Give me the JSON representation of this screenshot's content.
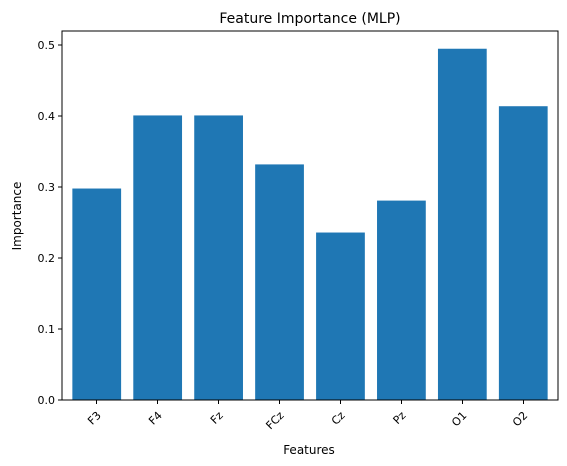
{
  "chart_data": {
    "type": "bar",
    "title": "Feature Importance (MLP)",
    "xlabel": "Features",
    "ylabel": "Importance",
    "categories": [
      "F3",
      "F4",
      "Fz",
      "FCz",
      "Cz",
      "Pz",
      "O1",
      "O2"
    ],
    "values": [
      0.298,
      0.401,
      0.401,
      0.332,
      0.236,
      0.281,
      0.495,
      0.414
    ],
    "ylim": [
      0,
      0.52
    ],
    "yticks": [
      0.0,
      0.1,
      0.2,
      0.3,
      0.4,
      0.5
    ],
    "ytick_labels": [
      "0.0",
      "0.1",
      "0.2",
      "0.3",
      "0.4",
      "0.5"
    ],
    "bar_color": "#1f77b4",
    "xtick_rotation_deg": 45,
    "grid": false,
    "legend": false
  }
}
